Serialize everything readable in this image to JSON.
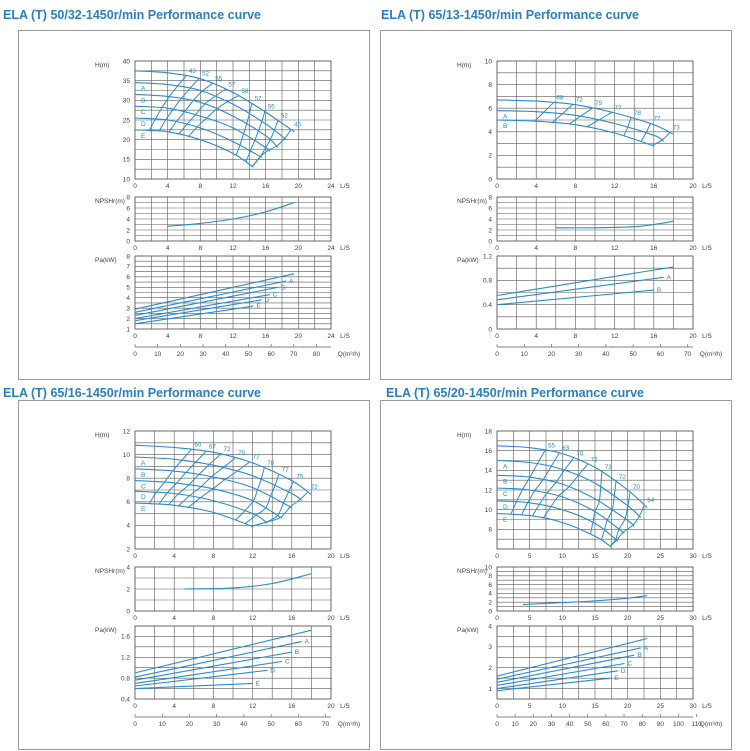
{
  "colors": {
    "curve": "#2a8ccf",
    "grid": "#5a5a5a",
    "text": "#444444",
    "title": "#2a7fc1"
  },
  "chart_data": [
    {
      "type": "line",
      "title": "ELA (T) 50/32-1450r/min Performance curve",
      "q_unit": "Q(m³/h)",
      "q_ticks": [
        "0",
        "10",
        "20",
        "30",
        "40",
        "50",
        "60",
        "70",
        "80"
      ],
      "head": {
        "ylabel": "H(m)",
        "xlabel": "L/S",
        "xticks": [
          "0",
          "4",
          "8",
          "12",
          "16",
          "20",
          "24"
        ],
        "xlim": [
          0,
          24
        ],
        "yticks": [
          "10",
          "15",
          "20",
          "25",
          "30",
          "35",
          "40"
        ],
        "ylim": [
          10,
          40
        ],
        "curves": [
          {
            "label": "",
            "x": [
              0,
              4,
              8,
              12,
              16,
              19.5
            ],
            "y": [
              37.5,
              37,
              35.5,
              32,
              27,
              22
            ]
          },
          {
            "label": "A",
            "x": [
              0,
              4,
              8,
              12,
              16,
              18.5
            ],
            "y": [
              34.5,
              34,
              32.5,
              29,
              24,
              20
            ]
          },
          {
            "label": "B",
            "x": [
              0,
              4,
              8,
              12,
              16,
              17.5
            ],
            "y": [
              31.5,
              31,
              29.5,
              26,
              21,
              18
            ]
          },
          {
            "label": "C",
            "x": [
              0,
              4,
              8,
              12,
              16,
              16.5
            ],
            "y": [
              28.5,
              28,
              26,
              23,
              18,
              17
            ]
          },
          {
            "label": "D",
            "x": [
              0,
              4,
              8,
              12,
              15.5
            ],
            "y": [
              25.5,
              25,
              23,
              19.5,
              15.5
            ]
          },
          {
            "label": "E",
            "x": [
              0,
              4,
              8,
              12,
              14.5
            ],
            "y": [
              22.5,
              22,
              20,
              16.5,
              13
            ]
          }
        ],
        "efficiency_labels": [
          "43",
          "52",
          "55",
          "57",
          "58",
          "57",
          "55",
          "52",
          "46"
        ]
      },
      "npsh": {
        "ylabel": "NPSHr(m)",
        "xlabel": "L/S",
        "xticks": [
          "0",
          "4",
          "8",
          "12",
          "16",
          "20",
          "24"
        ],
        "xlim": [
          0,
          24
        ],
        "yticks": [
          "0",
          "2",
          "4",
          "6",
          "8"
        ],
        "ylim": [
          0,
          8
        ],
        "x": [
          4,
          8,
          12,
          16,
          19.5
        ],
        "y": [
          2.7,
          3.2,
          4.0,
          5.3,
          7.0
        ]
      },
      "power": {
        "ylabel": "Pa(kW)",
        "xlabel": "L/S",
        "xticks": [
          "0",
          "4",
          "8",
          "12",
          "16",
          "20",
          "24"
        ],
        "xlim": [
          0,
          24
        ],
        "yticks": [
          "1",
          "2",
          "3",
          "4",
          "5",
          "6",
          "7",
          "8"
        ],
        "ylim": [
          1,
          8
        ],
        "curves": [
          {
            "label": "",
            "x": [
              0,
              19.5
            ],
            "y": [
              2.9,
              6.3
            ]
          },
          {
            "label": "A",
            "x": [
              0,
              18.5
            ],
            "y": [
              2.6,
              5.6
            ]
          },
          {
            "label": "B",
            "x": [
              0,
              17.5
            ],
            "y": [
              2.3,
              5.0
            ]
          },
          {
            "label": "C",
            "x": [
              0,
              16.5
            ],
            "y": [
              2.0,
              4.3
            ]
          },
          {
            "label": "D",
            "x": [
              0,
              15.5
            ],
            "y": [
              1.8,
              3.8
            ]
          },
          {
            "label": "E",
            "x": [
              0,
              14.5
            ],
            "y": [
              1.5,
              3.2
            ]
          }
        ]
      }
    },
    {
      "type": "line",
      "title": "ELA (T) 65/13-1450r/min Performance curve",
      "q_unit": "Q(m³/h)",
      "q_ticks": [
        "0",
        "10",
        "20",
        "30",
        "40",
        "50",
        "60",
        "70"
      ],
      "head": {
        "ylabel": "H(m)",
        "xlabel": "L/S",
        "xticks": [
          "0",
          "4",
          "8",
          "12",
          "16",
          "20"
        ],
        "xlim": [
          0,
          20
        ],
        "yticks": [
          "0",
          "2",
          "4",
          "6",
          "8",
          "10"
        ],
        "ylim": [
          0,
          10
        ],
        "curves": [
          {
            "label": "",
            "x": [
              0,
              4,
              8,
              12,
              16,
              18
            ],
            "y": [
              6.7,
              6.6,
              6.3,
              5.6,
              4.6,
              3.8
            ]
          },
          {
            "label": "A",
            "x": [
              0,
              4,
              8,
              12,
              16,
              17
            ],
            "y": [
              5.8,
              5.7,
              5.4,
              4.7,
              3.7,
              3.2
            ]
          },
          {
            "label": "B",
            "x": [
              0,
              4,
              8,
              12,
              16
            ],
            "y": [
              5.0,
              4.9,
              4.6,
              3.9,
              2.8
            ]
          }
        ],
        "efficiency_labels": [
          "68",
          "72",
          "75",
          "77",
          "78",
          "77",
          "73"
        ]
      },
      "npsh": {
        "ylabel": "NPSHr(m)",
        "xlabel": "L/S",
        "xticks": [
          "0",
          "4",
          "8",
          "12",
          "16",
          "20"
        ],
        "xlim": [
          0,
          20
        ],
        "yticks": [
          "0",
          "2",
          "4",
          "6",
          "8"
        ],
        "ylim": [
          0,
          8
        ],
        "x": [
          6,
          10,
          14,
          16,
          18
        ],
        "y": [
          2.4,
          2.4,
          2.6,
          3.0,
          3.6
        ]
      },
      "power": {
        "ylabel": "Pa(kW)",
        "xlabel": "L/S",
        "xticks": [
          "0",
          "4",
          "8",
          "12",
          "16",
          "20"
        ],
        "xlim": [
          0,
          20
        ],
        "yticks": [
          "0",
          "0.4",
          "0.8",
          "1.2"
        ],
        "ylim": [
          0,
          1.2
        ],
        "curves": [
          {
            "label": "",
            "x": [
              0,
              18
            ],
            "y": [
              0.55,
              1.02
            ]
          },
          {
            "label": "A",
            "x": [
              0,
              17
            ],
            "y": [
              0.48,
              0.85
            ]
          },
          {
            "label": "B",
            "x": [
              0,
              16
            ],
            "y": [
              0.4,
              0.64
            ]
          }
        ]
      }
    },
    {
      "type": "line",
      "title": "ELA (T) 65/16-1450r/min Performance curve",
      "q_unit": "Q(m³/h)",
      "q_ticks": [
        "0",
        "10",
        "20",
        "30",
        "40",
        "50",
        "60",
        "70"
      ],
      "head": {
        "ylabel": "H(m)",
        "xlabel": "L/S",
        "xticks": [
          "0",
          "4",
          "8",
          "12",
          "16",
          "20"
        ],
        "xlim": [
          0,
          20
        ],
        "yticks": [
          "2",
          "4",
          "6",
          "8",
          "10",
          "12"
        ],
        "ylim": [
          2,
          12
        ],
        "curves": [
          {
            "label": "",
            "x": [
              0,
              4,
              8,
              12,
              16,
              18
            ],
            "y": [
              10.8,
              10.6,
              10.2,
              9.3,
              7.8,
              6.6
            ]
          },
          {
            "label": "A",
            "x": [
              0,
              4,
              8,
              12,
              16,
              17
            ],
            "y": [
              9.8,
              9.6,
              9.1,
              8.2,
              6.7,
              6.1
            ]
          },
          {
            "label": "B",
            "x": [
              0,
              4,
              8,
              12,
              16
            ],
            "y": [
              8.8,
              8.6,
              8.1,
              7.2,
              5.5
            ]
          },
          {
            "label": "C",
            "x": [
              0,
              4,
              8,
              12,
              15
            ],
            "y": [
              7.8,
              7.6,
              7.1,
              6.1,
              4.6
            ]
          },
          {
            "label": "D",
            "x": [
              0,
              4,
              8,
              12,
              13.5
            ],
            "y": [
              6.9,
              6.7,
              6.1,
              5.0,
              4.2
            ]
          },
          {
            "label": "E",
            "x": [
              0,
              4,
              8,
              12
            ],
            "y": [
              5.9,
              5.7,
              5.1,
              3.9
            ]
          }
        ],
        "efficiency_labels": [
          "60",
          "67",
          "72",
          "75",
          "77",
          "78",
          "77",
          "75",
          "72"
        ]
      },
      "npsh": {
        "ylabel": "NPSHr(m)",
        "xlabel": "L/S",
        "xticks": [
          "0",
          "4",
          "8",
          "12",
          "16",
          "20"
        ],
        "xlim": [
          0,
          20
        ],
        "yticks": [
          "0",
          "2",
          "4"
        ],
        "ylim": [
          0,
          4
        ],
        "x": [
          5,
          10,
          14,
          18
        ],
        "y": [
          2.0,
          2.1,
          2.5,
          3.4
        ]
      },
      "power": {
        "ylabel": "Pa(kW)",
        "xlabel": "L/S",
        "xticks": [
          "0",
          "4",
          "8",
          "12",
          "16",
          "20"
        ],
        "xlim": [
          0,
          20
        ],
        "yticks": [
          "0.4",
          "0.8",
          "1.2",
          "1.6"
        ],
        "ylim": [
          0.4,
          1.8
        ],
        "curves": [
          {
            "label": "",
            "x": [
              0,
              18
            ],
            "y": [
              0.9,
              1.72
            ]
          },
          {
            "label": "A",
            "x": [
              0,
              17
            ],
            "y": [
              0.82,
              1.5
            ]
          },
          {
            "label": "B",
            "x": [
              0,
              16
            ],
            "y": [
              0.76,
              1.3
            ]
          },
          {
            "label": "C",
            "x": [
              0,
              15
            ],
            "y": [
              0.7,
              1.12
            ]
          },
          {
            "label": "D",
            "x": [
              0,
              13.5
            ],
            "y": [
              0.65,
              0.95
            ]
          },
          {
            "label": "E",
            "x": [
              0,
              12
            ],
            "y": [
              0.6,
              0.7
            ]
          }
        ]
      }
    },
    {
      "type": "line",
      "title": "ELA (T) 65/20-1450r/min Performance curve",
      "q_unit": "Q(m³/h)",
      "q_ticks": [
        "0",
        "10",
        "20",
        "30",
        "40",
        "50",
        "60",
        "70",
        "80",
        "90",
        "100",
        "110"
      ],
      "head": {
        "ylabel": "H(m)",
        "xlabel": "L/S",
        "xticks": [
          "0",
          "5",
          "10",
          "15",
          "20",
          "25",
          "30"
        ],
        "xlim": [
          0,
          30
        ],
        "yticks": [
          "8",
          "10",
          "12",
          "14",
          "16",
          "18"
        ],
        "ylim": [
          6,
          18
        ],
        "curves": [
          {
            "label": "",
            "x": [
              0,
              5,
              10,
              15,
              20,
              23
            ],
            "y": [
              16.5,
              16.3,
              15.7,
              14.3,
              12.0,
              10.2
            ]
          },
          {
            "label": "A",
            "x": [
              0,
              5,
              10,
              15,
              20,
              22
            ],
            "y": [
              15.0,
              14.8,
              14.1,
              12.7,
              10.4,
              9.2
            ]
          },
          {
            "label": "B",
            "x": [
              0,
              5,
              10,
              15,
              20,
              21
            ],
            "y": [
              13.5,
              13.3,
              12.6,
              11.1,
              8.9,
              8.3
            ]
          },
          {
            "label": "C",
            "x": [
              0,
              5,
              10,
              15,
              19.5
            ],
            "y": [
              12.2,
              12.0,
              11.3,
              9.8,
              7.6
            ]
          },
          {
            "label": "D",
            "x": [
              0,
              5,
              10,
              15,
              18.5
            ],
            "y": [
              10.9,
              10.7,
              10.0,
              8.6,
              6.8
            ]
          },
          {
            "label": "E",
            "x": [
              0,
              5,
              10,
              15,
              17.5
            ],
            "y": [
              9.6,
              9.4,
              8.7,
              7.3,
              6.2
            ]
          }
        ],
        "efficiency_labels": [
          "55",
          "63",
          "70",
          "72",
          "73",
          "72",
          "70",
          "64"
        ]
      },
      "npsh": {
        "ylabel": "NPSHr(m)",
        "xlabel": "L/S",
        "xticks": [
          "0",
          "5",
          "10",
          "15",
          "20",
          "25",
          "30"
        ],
        "xlim": [
          0,
          30
        ],
        "yticks": [
          "0",
          "2",
          "4",
          "6",
          "8",
          "10"
        ],
        "ylim": [
          0,
          10
        ],
        "x": [
          4,
          10,
          16,
          20,
          23
        ],
        "y": [
          1.5,
          1.9,
          2.4,
          2.9,
          3.5
        ]
      },
      "power": {
        "ylabel": "Pa(kW)",
        "xlabel": "L/S",
        "xticks": [
          "0",
          "5",
          "10",
          "15",
          "20",
          "25",
          "30"
        ],
        "xlim": [
          0,
          30
        ],
        "yticks": [
          "1",
          "2",
          "3",
          "4"
        ],
        "ylim": [
          0.5,
          4
        ],
        "curves": [
          {
            "label": "",
            "x": [
              0,
              23
            ],
            "y": [
              1.6,
              3.4
            ]
          },
          {
            "label": "A",
            "x": [
              0,
              22
            ],
            "y": [
              1.45,
              2.95
            ]
          },
          {
            "label": "B",
            "x": [
              0,
              21
            ],
            "y": [
              1.3,
              2.6
            ]
          },
          {
            "label": "C",
            "x": [
              0,
              19.5
            ],
            "y": [
              1.15,
              2.2
            ]
          },
          {
            "label": "D",
            "x": [
              0,
              18.5
            ],
            "y": [
              1.0,
              1.85
            ]
          },
          {
            "label": "E",
            "x": [
              0,
              17.5
            ],
            "y": [
              0.9,
              1.5
            ]
          }
        ]
      }
    }
  ]
}
